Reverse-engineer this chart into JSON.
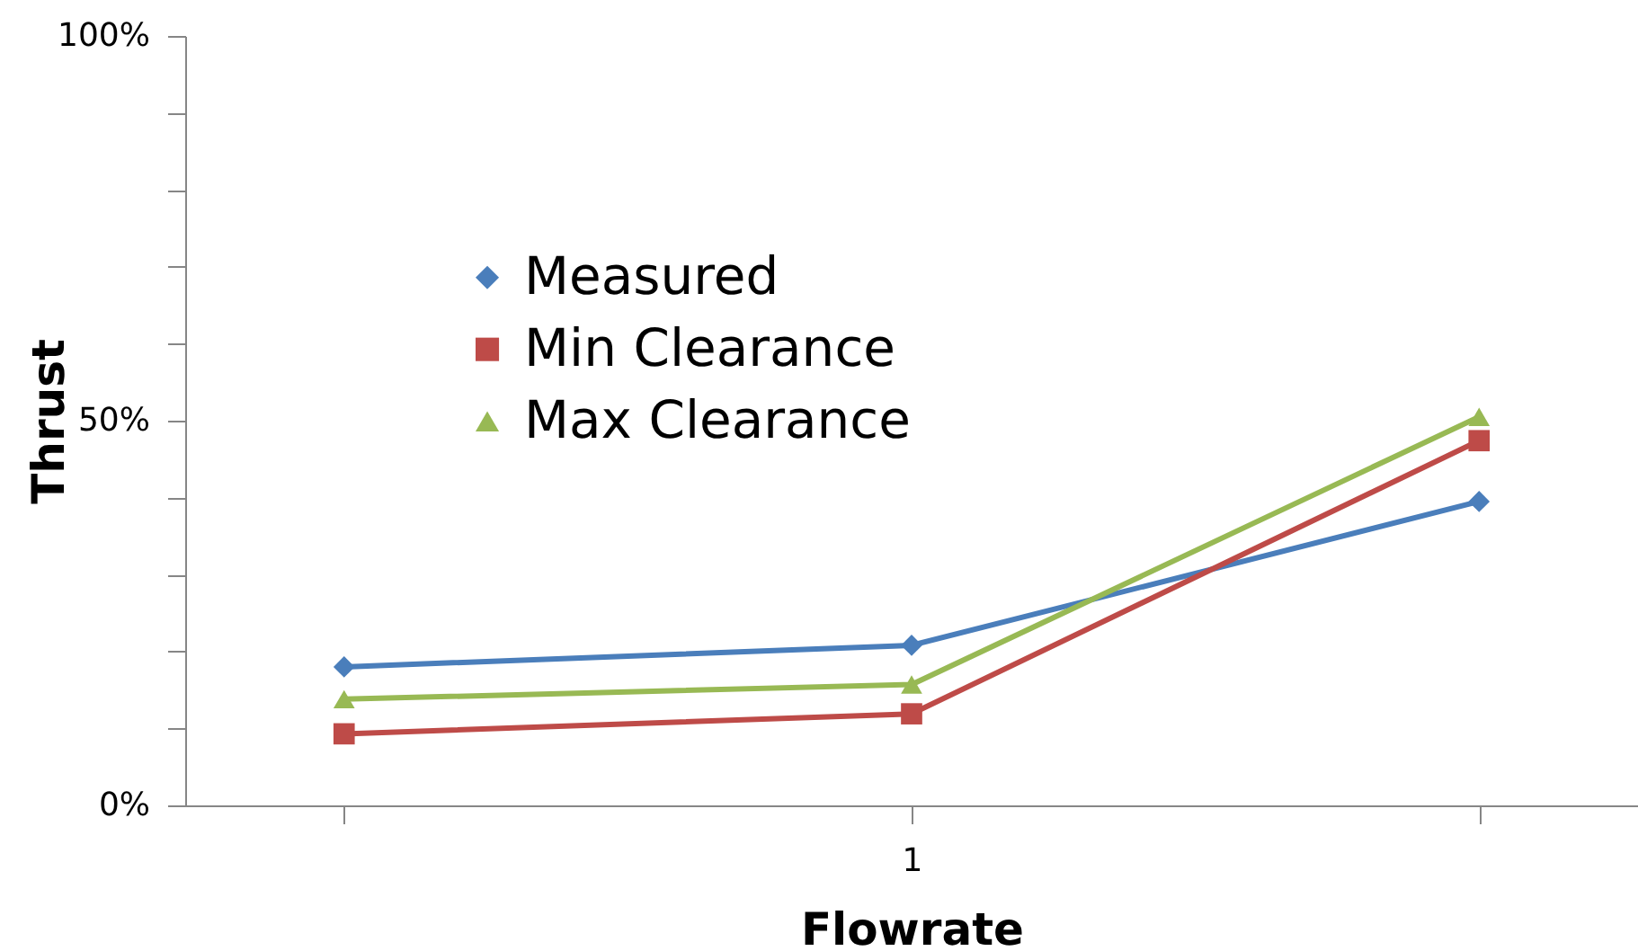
{
  "chart_data": {
    "type": "line",
    "xlabel": "Flowrate",
    "ylabel": "Thrust",
    "categories": [
      null,
      "1",
      null
    ],
    "ylim": [
      0,
      100
    ],
    "yticks": [
      {
        "value": 0,
        "label": "0%"
      },
      {
        "value": 10,
        "label": null
      },
      {
        "value": 20,
        "label": null
      },
      {
        "value": 30,
        "label": null
      },
      {
        "value": 40,
        "label": null
      },
      {
        "value": 50,
        "label": "50%"
      },
      {
        "value": 60,
        "label": null
      },
      {
        "value": 70,
        "label": null
      },
      {
        "value": 80,
        "label": null
      },
      {
        "value": 90,
        "label": null
      },
      {
        "value": 100,
        "label": "100%"
      }
    ],
    "series": [
      {
        "name": "Measured",
        "color": "#4a7ebb",
        "marker": "diamond",
        "values": [
          18.0,
          20.8,
          39.5
        ]
      },
      {
        "name": "Min Clearance",
        "color": "#be4b48",
        "marker": "square",
        "values": [
          9.3,
          11.9,
          47.4
        ]
      },
      {
        "name": "Max Clearance",
        "color": "#98b954",
        "marker": "triangle",
        "values": [
          13.8,
          15.7,
          50.5
        ]
      }
    ],
    "legend": "top left"
  }
}
